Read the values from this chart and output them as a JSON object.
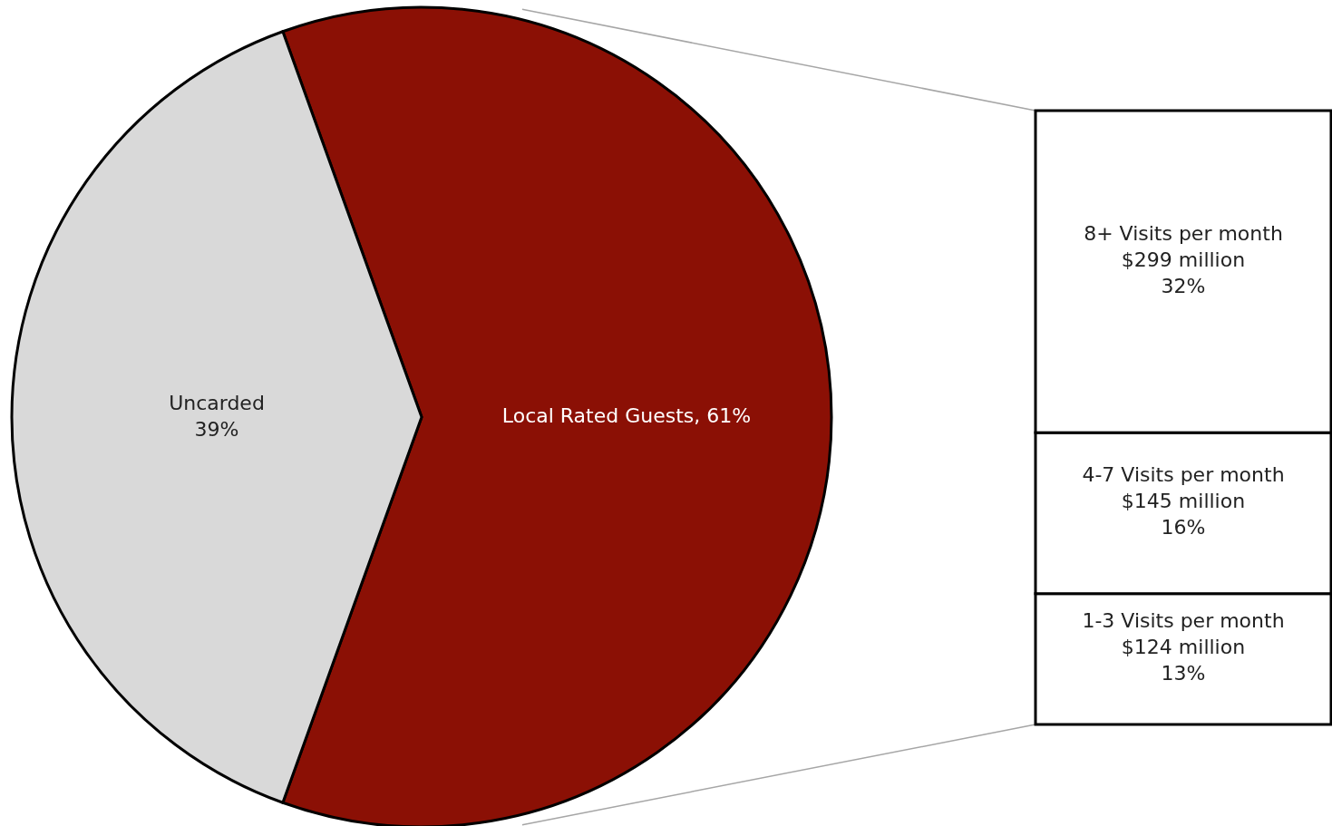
{
  "chart_data": [
    {
      "type": "pie",
      "categories": [
        "Local Rated Guests",
        "Uncarded"
      ],
      "values": [
        61,
        39
      ],
      "colors": [
        "#8b1005",
        "#d9d9d9"
      ],
      "value_labels": [
        "61%",
        "39%"
      ]
    },
    {
      "type": "bar",
      "stacked": true,
      "categories": [
        null
      ],
      "series": [
        {
          "name": "1-3 Visits per month",
          "color": "#ffffff",
          "values": [
            13
          ],
          "value_labels": [
            "$124 million\n13%"
          ]
        },
        {
          "name": "4-7 Visits per month",
          "color": "#ffffff",
          "values": [
            16
          ],
          "value_labels": [
            "$145 million\n16%"
          ]
        },
        {
          "name": "8+ Visits per month",
          "color": "#ffffff",
          "values": [
            32
          ],
          "value_labels": [
            "$299 million\n32%"
          ]
        }
      ]
    }
  ]
}
